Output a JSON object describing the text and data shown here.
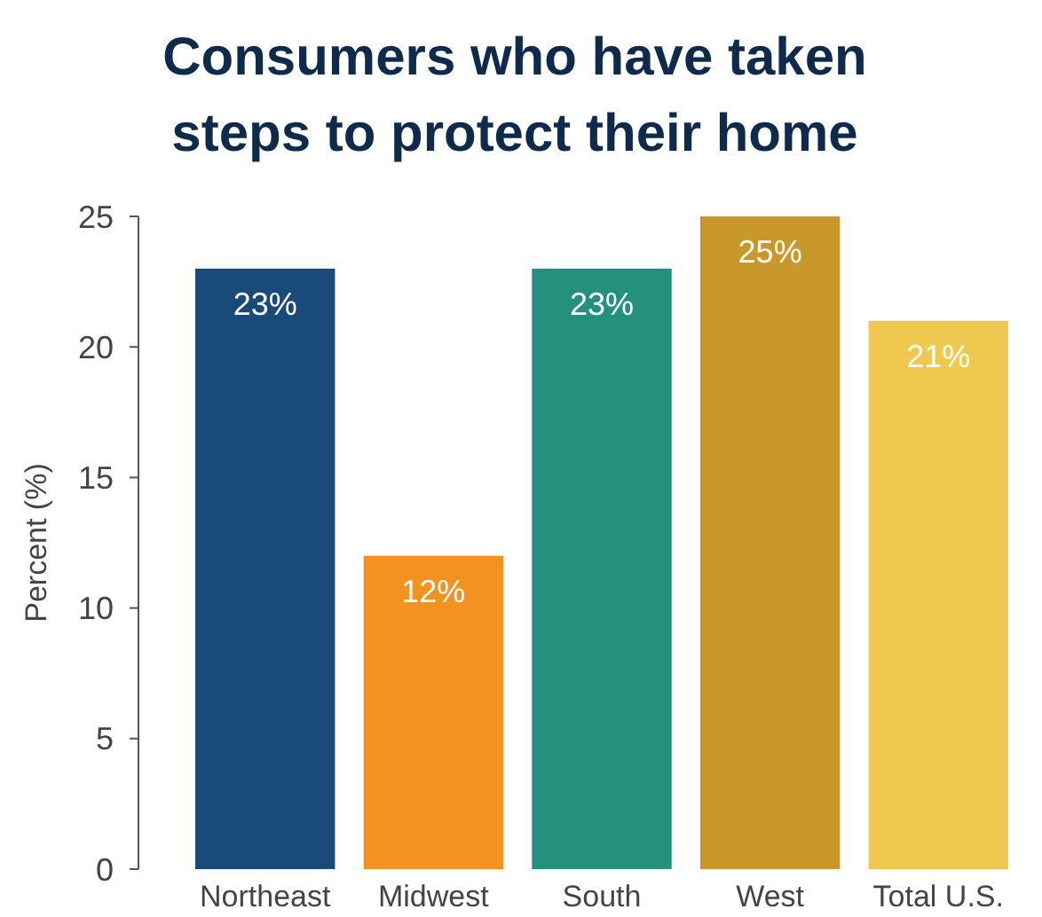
{
  "chart_data": {
    "type": "bar",
    "title": "Consumers who have taken steps to protect their home",
    "ylabel": "Percent (%)",
    "categories": [
      "Northeast",
      "Midwest",
      "South",
      "West",
      "Total U.S."
    ],
    "values": [
      23,
      12,
      23,
      25,
      21
    ],
    "value_labels": [
      "23%",
      "12%",
      "23%",
      "25%",
      "21%"
    ],
    "colors": [
      "#1a4a7a",
      "#f49220",
      "#24907e",
      "#c8982b",
      "#efc84e"
    ],
    "ylim": [
      0,
      25
    ],
    "yticks": [
      0,
      5,
      10,
      15,
      20,
      25
    ],
    "grid": false
  }
}
